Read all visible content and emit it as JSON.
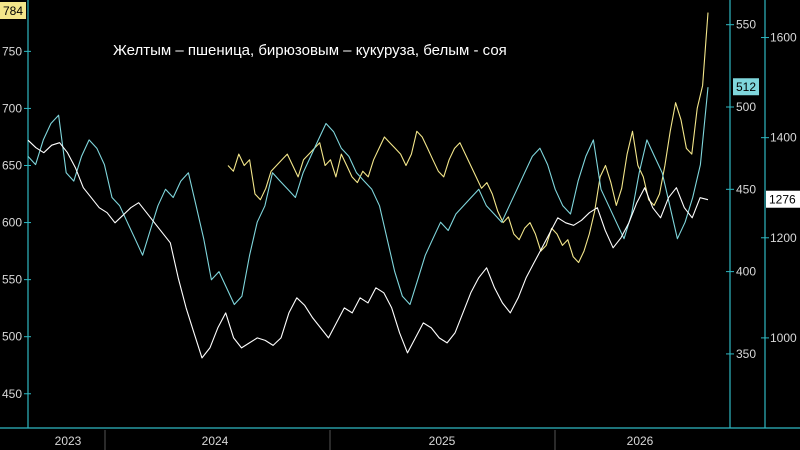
{
  "chart_data": {
    "type": "line",
    "annotation": "Желтым – пшеница, бирюзовым – кукуруза, белым - соя",
    "x_labels": [
      "2023",
      "2024",
      "2025",
      "2026"
    ],
    "axes": {
      "wheat": {
        "side": "left",
        "ticks": [
          450,
          500,
          550,
          600,
          650,
          700,
          750
        ],
        "range": [
          420,
          795
        ]
      },
      "corn": {
        "side": "right-inner",
        "ticks": [
          350,
          400,
          450,
          500,
          550
        ],
        "range": [
          305,
          565
        ]
      },
      "soy": {
        "side": "right-outer",
        "ticks": [
          1000,
          1200,
          1400,
          1600
        ],
        "range": [
          820,
          1675
        ]
      }
    },
    "series": [
      {
        "key": "wheat",
        "color": "#f3e68a",
        "last_label": "784",
        "values": [
          650,
          645,
          660,
          650,
          655,
          625,
          620,
          630,
          645,
          650,
          655,
          660,
          650,
          640,
          655,
          660,
          665,
          670,
          650,
          655,
          640,
          660,
          650,
          640,
          635,
          645,
          640,
          655,
          665,
          675,
          670,
          665,
          660,
          650,
          660,
          680,
          675,
          665,
          655,
          645,
          640,
          655,
          665,
          670,
          660,
          650,
          640,
          630,
          635,
          625,
          610,
          600,
          605,
          590,
          585,
          595,
          600,
          590,
          575,
          580,
          595,
          590,
          580,
          585,
          570,
          565,
          575,
          590,
          610,
          640,
          650,
          635,
          615,
          630,
          660,
          680,
          650,
          640,
          620,
          615,
          625,
          650,
          680,
          705,
          690,
          665,
          660,
          700,
          720,
          784
        ]
      },
      {
        "key": "corn",
        "color": "#7fd6dc",
        "last_label": "512",
        "values": [
          470,
          465,
          480,
          490,
          495,
          460,
          455,
          470,
          480,
          475,
          465,
          445,
          440,
          430,
          420,
          410,
          425,
          440,
          450,
          445,
          455,
          460,
          440,
          420,
          395,
          400,
          390,
          380,
          385,
          410,
          430,
          440,
          460,
          455,
          450,
          445,
          460,
          470,
          480,
          490,
          485,
          475,
          470,
          460,
          455,
          450,
          440,
          420,
          400,
          385,
          380,
          395,
          410,
          420,
          430,
          425,
          435,
          440,
          445,
          450,
          440,
          435,
          430,
          440,
          450,
          460,
          470,
          475,
          465,
          450,
          440,
          435,
          455,
          470,
          480,
          450,
          440,
          430,
          420,
          435,
          460,
          480,
          470,
          460,
          440,
          420,
          430,
          445,
          465,
          512
        ]
      },
      {
        "key": "soy",
        "color": "#ffffff",
        "last_label": "1276",
        "values": [
          1395,
          1380,
          1370,
          1385,
          1390,
          1370,
          1340,
          1300,
          1280,
          1260,
          1250,
          1230,
          1245,
          1260,
          1270,
          1250,
          1230,
          1210,
          1190,
          1120,
          1060,
          1010,
          960,
          980,
          1020,
          1050,
          1000,
          980,
          990,
          1000,
          995,
          985,
          1000,
          1050,
          1080,
          1065,
          1040,
          1020,
          1000,
          1030,
          1060,
          1050,
          1080,
          1070,
          1100,
          1090,
          1060,
          1010,
          970,
          1000,
          1030,
          1020,
          1000,
          990,
          1010,
          1050,
          1090,
          1120,
          1140,
          1100,
          1070,
          1050,
          1080,
          1120,
          1150,
          1180,
          1210,
          1240,
          1230,
          1225,
          1235,
          1250,
          1260,
          1215,
          1180,
          1200,
          1230,
          1270,
          1300,
          1260,
          1240,
          1280,
          1300,
          1260,
          1240,
          1280,
          1276
        ]
      }
    ]
  }
}
